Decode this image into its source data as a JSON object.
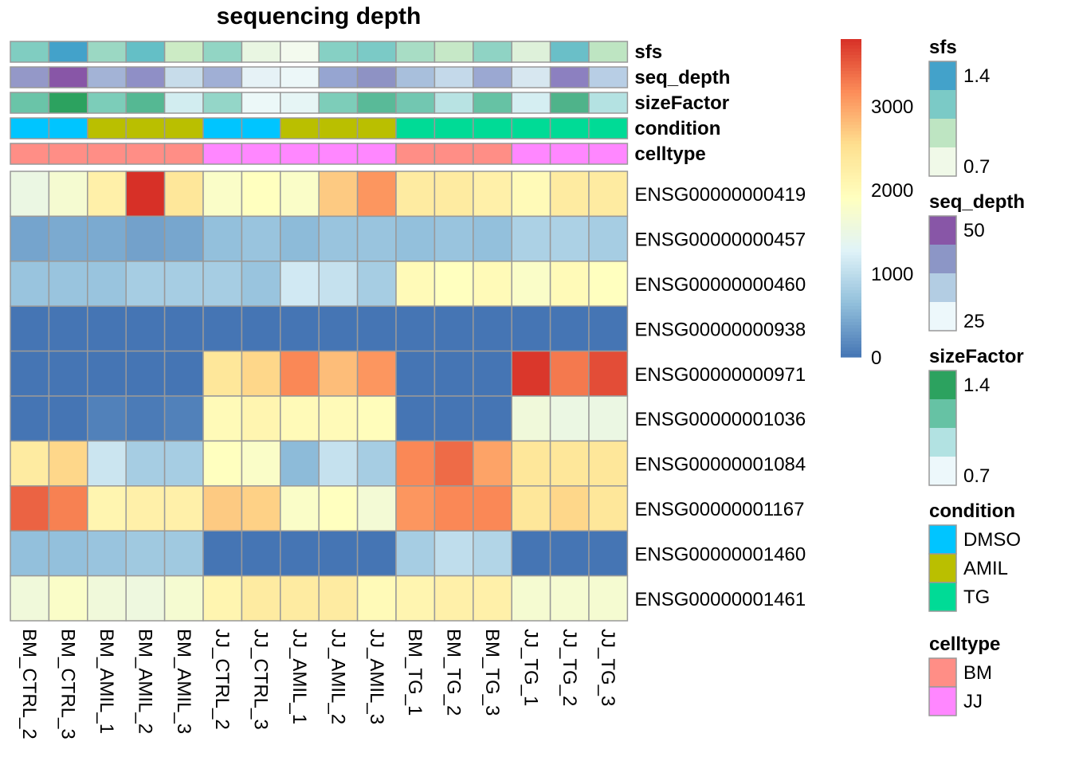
{
  "chart_data": {
    "type": "heatmap",
    "title": "sequencing depth",
    "columns": [
      "BM_CTRL_2",
      "BM_CTRL_3",
      "BM_AMIL_1",
      "BM_AMIL_2",
      "BM_AMIL_3",
      "JJ_CTRL_2",
      "JJ_CTRL_3",
      "JJ_AMIL_1",
      "JJ_AMIL_2",
      "JJ_AMIL_3",
      "BM_TG_1",
      "BM_TG_2",
      "BM_TG_3",
      "JJ_TG_1",
      "JJ_TG_2",
      "JJ_TG_3"
    ],
    "rows": [
      "ENSG00000000419",
      "ENSG00000000457",
      "ENSG00000000460",
      "ENSG00000000938",
      "ENSG00000000971",
      "ENSG00000001036",
      "ENSG00000001084",
      "ENSG00000001167",
      "ENSG00000001460",
      "ENSG00000001461"
    ],
    "values": [
      [
        1500,
        1700,
        2200,
        3800,
        2400,
        1800,
        1900,
        1800,
        2700,
        3100,
        2300,
        2300,
        2200,
        2000,
        2300,
        2300
      ],
      [
        400,
        450,
        450,
        380,
        420,
        650,
        700,
        600,
        700,
        700,
        650,
        700,
        650,
        850,
        850,
        800
      ],
      [
        700,
        700,
        700,
        800,
        800,
        800,
        700,
        1150,
        1050,
        800,
        2000,
        1900,
        2000,
        1800,
        2000,
        1900
      ],
      [
        0,
        0,
        0,
        0,
        0,
        0,
        0,
        0,
        0,
        0,
        0,
        0,
        0,
        0,
        0,
        0
      ],
      [
        0,
        0,
        0,
        0,
        0,
        2400,
        2600,
        3200,
        2800,
        3100,
        0,
        0,
        0,
        3750,
        3300,
        3600
      ],
      [
        0,
        0,
        100,
        50,
        100,
        2000,
        2100,
        2000,
        2000,
        1950,
        0,
        0,
        0,
        1600,
        1500,
        1500
      ],
      [
        2300,
        2600,
        1100,
        800,
        800,
        1900,
        1800,
        600,
        1050,
        800,
        3200,
        3400,
        3000,
        2400,
        2400,
        2400
      ],
      [
        3450,
        3250,
        2100,
        2200,
        2200,
        2700,
        2650,
        1800,
        1900,
        1650,
        3100,
        3200,
        3200,
        2400,
        2600,
        2400
      ],
      [
        650,
        650,
        700,
        750,
        750,
        0,
        0,
        0,
        0,
        0,
        800,
        1000,
        900,
        0,
        0,
        0
      ],
      [
        1600,
        1800,
        1600,
        1550,
        1700,
        2100,
        2300,
        2300,
        2300,
        2000,
        2100,
        2200,
        2200,
        1700,
        1700,
        1700
      ]
    ],
    "scale": {
      "min": 0,
      "max": 3800,
      "ticks": [
        0,
        1000,
        2000,
        3000
      ],
      "colors": [
        "#4575B4",
        "#91BFDB",
        "#E0F3F8",
        "#FFFFBF",
        "#FEE090",
        "#FC8D59",
        "#D73027"
      ]
    },
    "annotations": [
      {
        "name": "sfs",
        "colors": [
          "#80CDC1",
          "#43A2CA",
          "#9BD8C3",
          "#64BFC6",
          "#CCEBC5",
          "#92D5C4",
          "#E9F6E2",
          "#F3FAEE",
          "#86D0C4",
          "#7BCAC6",
          "#A8DDC5",
          "#C6E8C7",
          "#8FD3C4",
          "#DEF1DA",
          "#6ABFC8",
          "#BEE5C2"
        ]
      },
      {
        "name": "seq_depth",
        "colors": [
          "#9498C8",
          "#8856A7",
          "#A3B3D6",
          "#8F8FC6",
          "#C7DCEA",
          "#A0AFD5",
          "#E6F2F6",
          "#ECF7F8",
          "#96A5D1",
          "#8E92C4",
          "#A8BFDC",
          "#C4D9EA",
          "#9BA8D2",
          "#D7E7F0",
          "#8C80C0",
          "#B8CEE5"
        ]
      },
      {
        "name": "sizeFactor",
        "colors": [
          "#6AC4A8",
          "#2CA25F",
          "#7CCDB9",
          "#55B893",
          "#D2EDF0",
          "#94D6C8",
          "#ECF8F8",
          "#E6F5F5",
          "#7DCDB9",
          "#59BA98",
          "#72C7B1",
          "#B8E3E3",
          "#66C2A4",
          "#D5EEF2",
          "#4FB38A",
          "#B4E2E2"
        ]
      },
      {
        "name": "condition",
        "colors": [
          "#00C5FF",
          "#00C5FF",
          "#BABF00",
          "#BABF00",
          "#BABF00",
          "#00C5FF",
          "#00C5FF",
          "#BABF00",
          "#BABF00",
          "#BABF00",
          "#00DB96",
          "#00DB96",
          "#00DB96",
          "#00DB96",
          "#00DB96",
          "#00DB96"
        ]
      },
      {
        "name": "celltype",
        "colors": [
          "#FF8E86",
          "#FF8E86",
          "#FF8E86",
          "#FF8E86",
          "#FF8E86",
          "#FF87FF",
          "#FF87FF",
          "#FF87FF",
          "#FF87FF",
          "#FF87FF",
          "#FF8E86",
          "#FF8E86",
          "#FF8E86",
          "#FF87FF",
          "#FF87FF",
          "#FF87FF"
        ]
      }
    ],
    "legends": [
      {
        "title": "sfs",
        "type": "gradient",
        "colors": [
          "#43A2CA",
          "#7BCAC6",
          "#BEE5C2",
          "#F0F9E8"
        ],
        "labels": [
          "1.4",
          "0.7"
        ]
      },
      {
        "title": "seq_depth",
        "type": "gradient",
        "colors": [
          "#8856A7",
          "#8C96C6",
          "#B3CDE3",
          "#EDF8FB"
        ],
        "labels": [
          "50",
          "25"
        ]
      },
      {
        "title": "sizeFactor",
        "type": "gradient",
        "colors": [
          "#2CA25F",
          "#66C2A4",
          "#B2E2E2",
          "#EDF8FB"
        ],
        "labels": [
          "1.4",
          "0.7"
        ]
      },
      {
        "title": "condition",
        "type": "discrete",
        "items": [
          {
            "label": "DMSO",
            "color": "#00C5FF"
          },
          {
            "label": "AMIL",
            "color": "#BABF00"
          },
          {
            "label": "TG",
            "color": "#00DB96"
          }
        ]
      },
      {
        "title": "celltype",
        "type": "discrete",
        "items": [
          {
            "label": "BM",
            "color": "#FF8E86"
          },
          {
            "label": "JJ",
            "color": "#FF87FF"
          }
        ]
      }
    ],
    "grid": true
  }
}
